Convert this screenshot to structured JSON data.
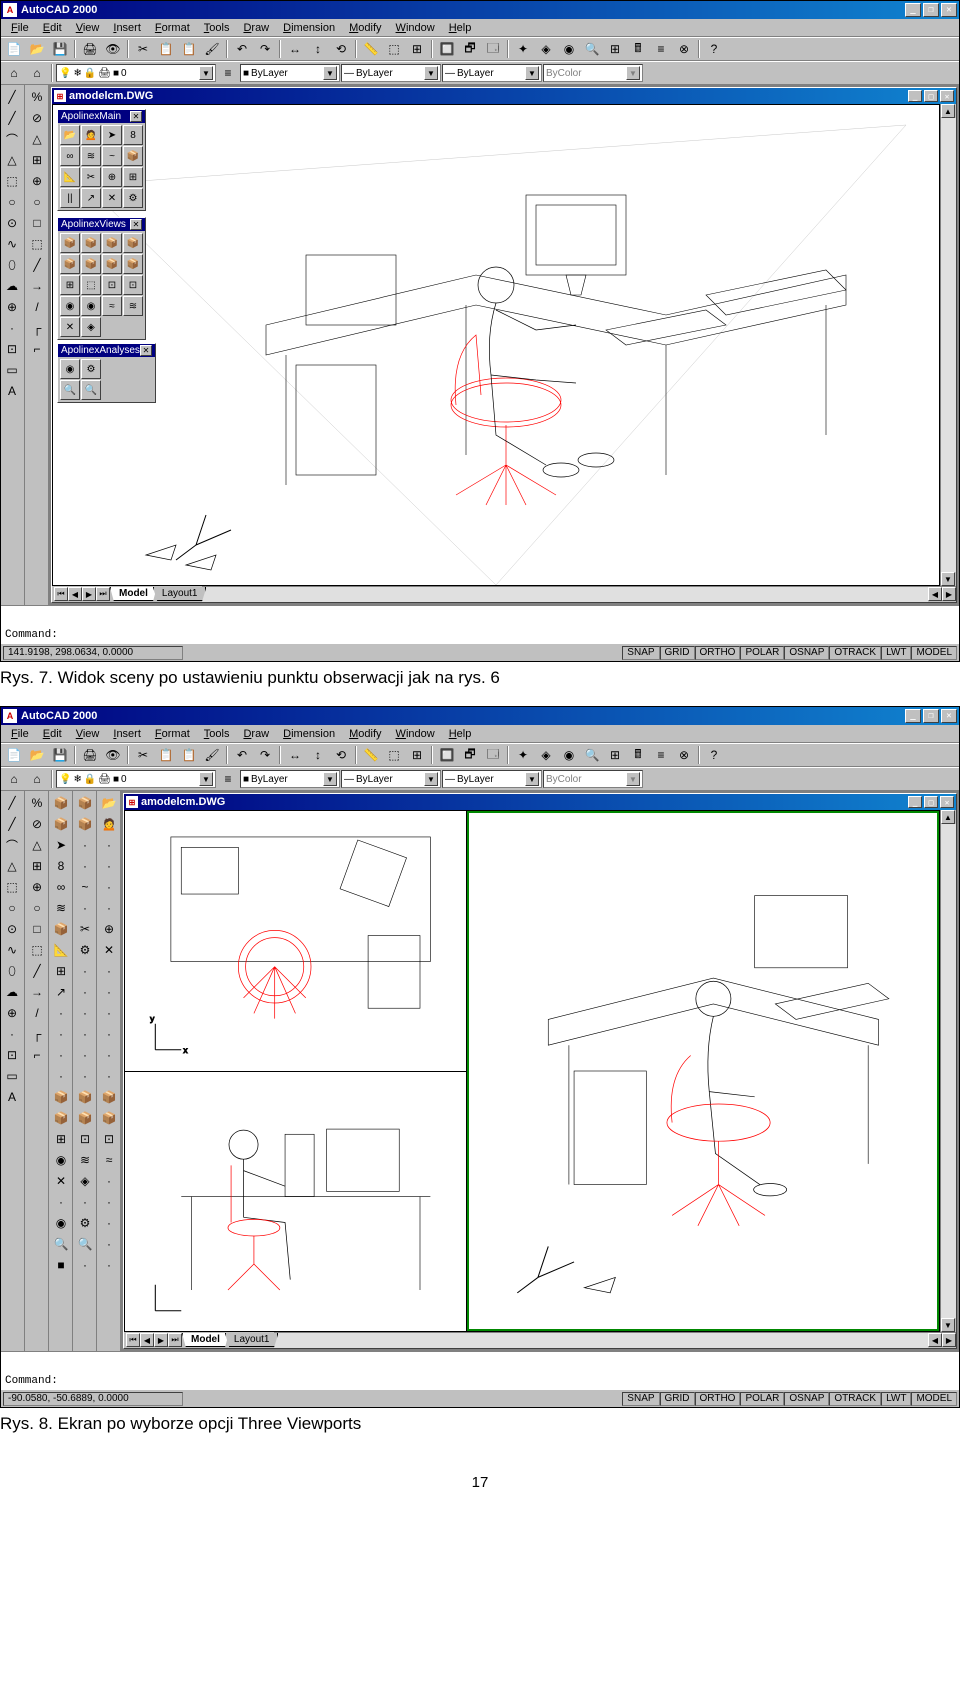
{
  "app": {
    "title": "AutoCAD 2000",
    "icon_glyph": "A",
    "menu": [
      "File",
      "Edit",
      "View",
      "Insert",
      "Format",
      "Tools",
      "Draw",
      "Dimension",
      "Modify",
      "Window",
      "Help"
    ],
    "win_controls": [
      "_",
      "❐",
      "✕"
    ]
  },
  "toolbar1": {
    "buttons": [
      "📄",
      "📂",
      "💾",
      "|",
      "🖨",
      "👁",
      "|",
      "✂",
      "📋",
      "📋",
      "🖌",
      "|",
      "↶",
      "↷",
      "|",
      "↔",
      "↕",
      "⟲",
      "|",
      "📏",
      "⬚",
      "⊞",
      "|",
      "🔲",
      "🗗",
      "🗔",
      "|",
      "✦",
      "◈",
      "◉",
      "🔍",
      "⊞",
      "🖩",
      "≡",
      "⊗",
      "|",
      "?"
    ]
  },
  "toolbar2": {
    "layer_toggles": [
      "⌂",
      "⌂",
      "|",
      "💡",
      "❄",
      "🔒",
      "🖨",
      "■"
    ],
    "layer_name": "0",
    "props": [
      {
        "swatch": "■",
        "label": "ByLayer"
      },
      {
        "swatch": "—",
        "label": "ByLayer"
      },
      {
        "swatch": "—",
        "label": "ByLayer"
      },
      {
        "swatch": "",
        "label": "ByColor",
        "disabled": true
      }
    ]
  },
  "left_toolbox_a": [
    "╱",
    "╱",
    "⌒",
    "△",
    "⬚",
    "○",
    "⊙",
    "∿",
    "⬯",
    "☁",
    "⊕",
    "·",
    "⊡",
    "▭",
    "A"
  ],
  "left_toolbox_b": [
    "%",
    "⊘",
    "△",
    "⊞",
    "⊕",
    "○",
    "□",
    "⬚",
    "╱",
    "→",
    "/",
    "┌",
    "⌐"
  ],
  "document": {
    "title": "amodelcm.DWG",
    "tabs": [
      "Model",
      "Layout1"
    ],
    "active_tab": "Model"
  },
  "palettes": {
    "main": {
      "title": "ApolinexMain",
      "rows": [
        [
          "📂",
          "🙍",
          "➤"
        ],
        [
          "8",
          "∞",
          "≋",
          "~"
        ],
        [
          "📦",
          "📐",
          "✂",
          "⊕"
        ],
        [
          "⊞",
          "||",
          "↗",
          "✕",
          "⚙"
        ]
      ]
    },
    "views": {
      "title": "ApolinexViews",
      "rows": [
        [
          "📦",
          "📦",
          "📦",
          "📦"
        ],
        [
          "📦",
          "📦",
          "📦",
          "📦"
        ],
        [
          "⊞",
          "⬚",
          "⊡",
          "⊡"
        ],
        [
          "◉",
          "◉",
          "≈",
          "≋"
        ],
        [
          "✕",
          "◈"
        ]
      ]
    },
    "analyses": {
      "title": "ApolinexAnalyses",
      "rows": [
        [
          "◉",
          "⚙"
        ],
        [
          "🔍",
          "🔍"
        ]
      ]
    }
  },
  "extra_cols_fig8": [
    [
      "📦",
      "📦",
      "➤",
      "8",
      "∞",
      "≋",
      "📦",
      "📐",
      "⊞",
      "↗",
      "·",
      "·",
      "·",
      "·",
      "📦",
      "📦",
      "⊞",
      "◉",
      "✕",
      "·",
      "◉",
      "🔍",
      "■"
    ],
    [
      "📦",
      "📦",
      "·",
      "·",
      "~",
      "·",
      "✂",
      "⚙",
      "·",
      "·",
      "·",
      "·",
      "·",
      "·",
      "📦",
      "📦",
      "⊡",
      "≋",
      "◈",
      "·",
      "⚙",
      "🔍",
      "·"
    ],
    [
      "📂",
      "🙍",
      "·",
      "·",
      "·",
      "·",
      "⊕",
      "✕",
      "·",
      "·",
      "·",
      "·",
      "·",
      "·",
      "📦",
      "📦",
      "⊡",
      "≈",
      "·",
      "·",
      "·",
      "·",
      "·"
    ]
  ],
  "command": {
    "prompt": "Command:"
  },
  "status_fig7": {
    "coords": "141.9198, 298.0634, 0.0000",
    "toggles": [
      "SNAP",
      "GRID",
      "ORTHO",
      "POLAR",
      "OSNAP",
      "OTRACK",
      "LWT",
      "MODEL"
    ]
  },
  "status_fig8": {
    "coords": "-90.0580, -50.6889, 0.0000",
    "toggles": [
      "SNAP",
      "GRID",
      "ORTHO",
      "POLAR",
      "OSNAP",
      "OTRACK",
      "LWT",
      "MODEL"
    ]
  },
  "captions": {
    "fig7": "Rys. 7. Widok sceny po ustawieniu punktu obserwacji jak na rys. 6",
    "fig8": "Rys. 8. Ekran po wyborze opcji Three Viewports",
    "page": "17"
  },
  "colors": {
    "titlebar_start": "#000080",
    "titlebar_end": "#1084d0",
    "ui_face": "#c0c0c0",
    "canvas_bg": "#ffffff",
    "wireframe": "#000000",
    "chair_highlight": "#ff0000"
  },
  "scene": {
    "description": "3D wireframe ergonomic workstation: seated human figure on red office chair at corner desk with CRT monitor, keyboard, drawing tablet, PC tower; UCS icon lower-left; arrow glyphs lower-left",
    "ucs_icon": "xyz-arrow",
    "arrow_glyphs": 2
  }
}
